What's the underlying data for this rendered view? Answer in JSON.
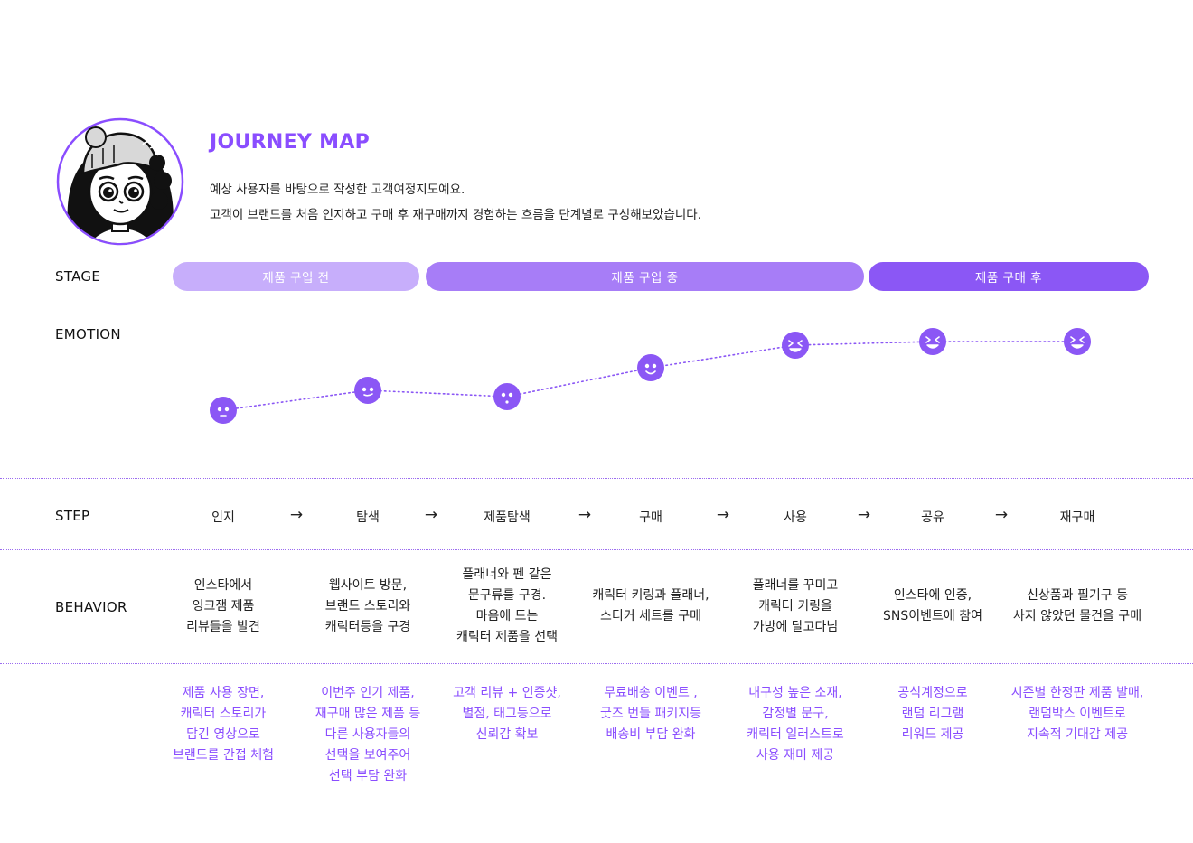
{
  "header": {
    "title": "JOURNEY MAP",
    "description_lines": [
      "예상 사용자를 바탕으로 작성한 고객여정지도예요.",
      "고객이 브랜드를 처음 인지하고 구매 후 재구매까지 경험하는 흐름을 단계별로 구성해보았습니다."
    ]
  },
  "labels": {
    "stage": "STAGE",
    "emotion": "EMOTION",
    "step": "STEP",
    "behavior": "BEHAVIOR"
  },
  "stages": [
    {
      "label": "제품 구입 전",
      "color": "#c7aefb"
    },
    {
      "label": "제품 구입 중",
      "color": "#a77df7"
    },
    {
      "label": "제품 구매 후",
      "color": "#8b57f5"
    }
  ],
  "steps": [
    "인지",
    "탐색",
    "제품탐색",
    "구매",
    "사용",
    "공유",
    "재구매"
  ],
  "arrow_glyph": "→",
  "emotions": [
    "neutral-face-icon",
    "slightly-smile-face-icon",
    "surprised-face-icon",
    "smile-face-icon",
    "laughing-face-icon",
    "laughing-face-icon",
    "laughing-face-icon"
  ],
  "behaviors": [
    [
      "인스타에서",
      "잉크잼 제품",
      "리뷰들을 발견"
    ],
    [
      "웹사이트 방문,",
      "브랜드 스토리와",
      "캐릭터등을 구경"
    ],
    [
      "플래너와 펜 같은",
      "문구류를 구경.",
      "마음에 드는",
      "캐릭터 제품을 선택"
    ],
    [
      "캐릭터 키링과 플래너,",
      "스티커 세트를 구매"
    ],
    [
      "플래너를 꾸미고",
      "캐릭터 키링을",
      "가방에 달고다님"
    ],
    [
      "인스타에 인증,",
      "SNS이벤트에 참여"
    ],
    [
      "신상품과 필기구 등",
      "사지 않았던 물건을 구매"
    ]
  ],
  "opportunities": [
    [
      "제품 사용 장면,",
      "캐릭터 스토리가",
      "담긴 영상으로",
      "브랜드를 간접 체험"
    ],
    [
      "이번주 인기 제품,",
      "재구매 많은 제품 등",
      "다른 사용자들의",
      "선택을 보여주어",
      "선택 부담 완화"
    ],
    [
      "고객 리뷰 + 인증샷,",
      "별점, 태그등으로",
      "신뢰감 확보"
    ],
    [
      "무료배송 이벤트 ,",
      "굿즈 번들 패키지등",
      "배송비 부담 완화"
    ],
    [
      "내구성 높은 소재,",
      "감정별 문구,",
      "캐릭터 일러스트로",
      "사용 재미 제공"
    ],
    [
      "공식계정으로",
      "랜덤 리그램",
      "리워드 제공"
    ],
    [
      "시즌별 한정판 제품 발매,",
      "랜덤박스 이벤트로",
      "지속적 기대감 제공"
    ]
  ],
  "colors": {
    "accent": "#8a4dff",
    "emotion_dot": "#8b57f5",
    "divider": "#9b6cf0"
  }
}
